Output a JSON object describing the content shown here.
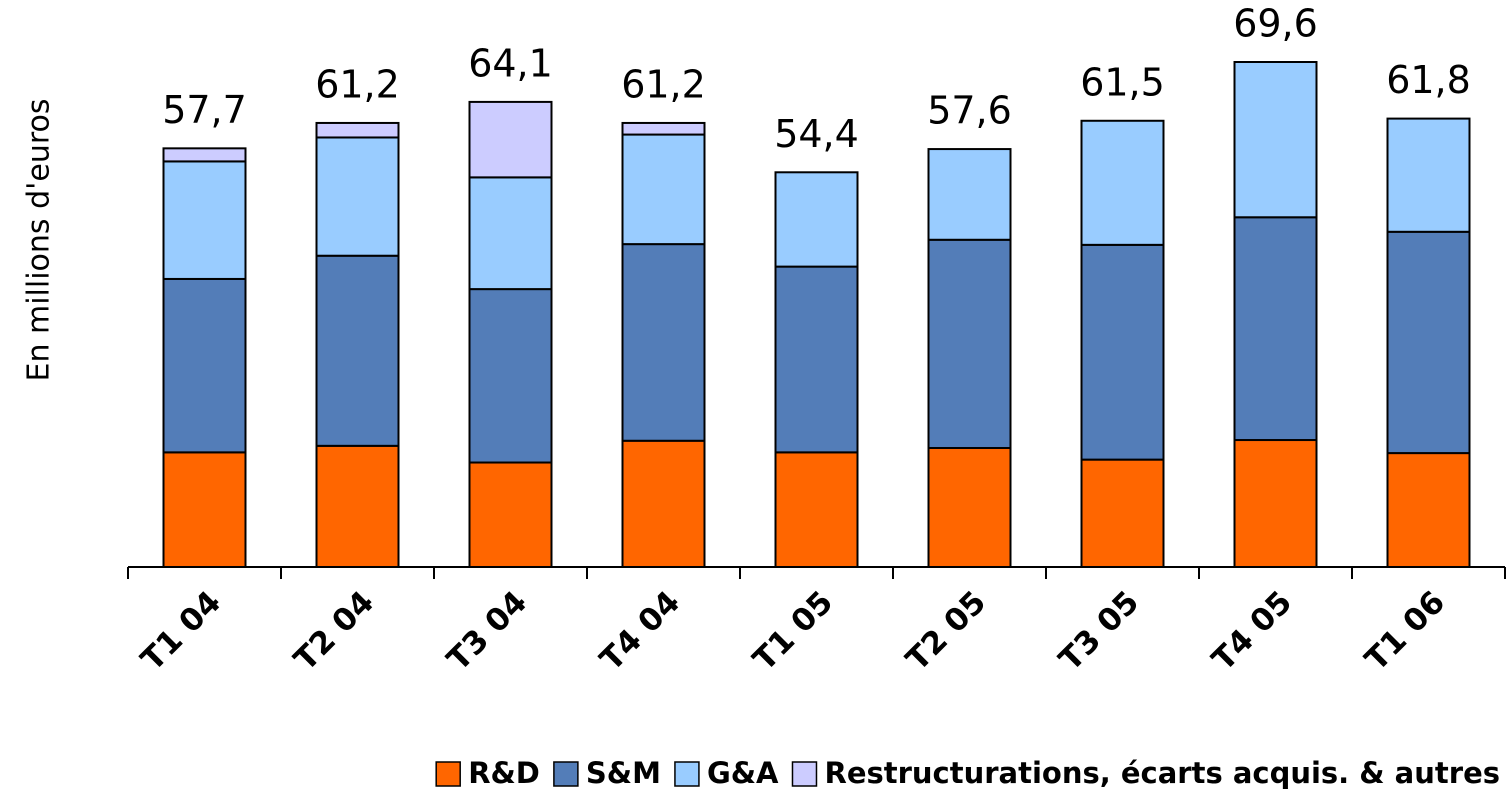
{
  "chart_data": {
    "type": "stacked_bar",
    "y_label": "En millions d'euros",
    "categories": [
      "T1 04",
      "T2 04",
      "T3 04",
      "T4 04",
      "T1 05",
      "T2 05",
      "T3 05",
      "T4 05",
      "T1 06"
    ],
    "series": [
      {
        "name": "R&D",
        "color": "#ff6600",
        "values": [
          15.8,
          16.7,
          14.4,
          17.4,
          15.8,
          16.4,
          14.8,
          17.5,
          15.7
        ]
      },
      {
        "name": "S&M",
        "color": "#537db8",
        "values": [
          23.9,
          26.2,
          23.9,
          27.1,
          25.6,
          28.7,
          29.6,
          30.7,
          30.5
        ]
      },
      {
        "name": "G&A",
        "color": "#99ccff",
        "values": [
          16.2,
          16.3,
          15.4,
          15.1,
          13.0,
          12.5,
          17.1,
          21.4,
          15.6
        ]
      },
      {
        "name": "Restructurations, écarts acquis. & autres",
        "color": "#ccccff",
        "values": [
          1.8,
          2.0,
          10.4,
          1.6,
          null,
          null,
          null,
          null,
          null
        ]
      }
    ],
    "totals": {
      "values": [
        57.7,
        61.2,
        64.1,
        61.2,
        54.4,
        57.6,
        61.5,
        69.6,
        61.8
      ],
      "value_labels": [
        "57,7",
        "61,2",
        "64,1",
        "61,2",
        "54,4",
        "57,6",
        "61,5",
        "69,6",
        "61,8"
      ]
    }
  }
}
